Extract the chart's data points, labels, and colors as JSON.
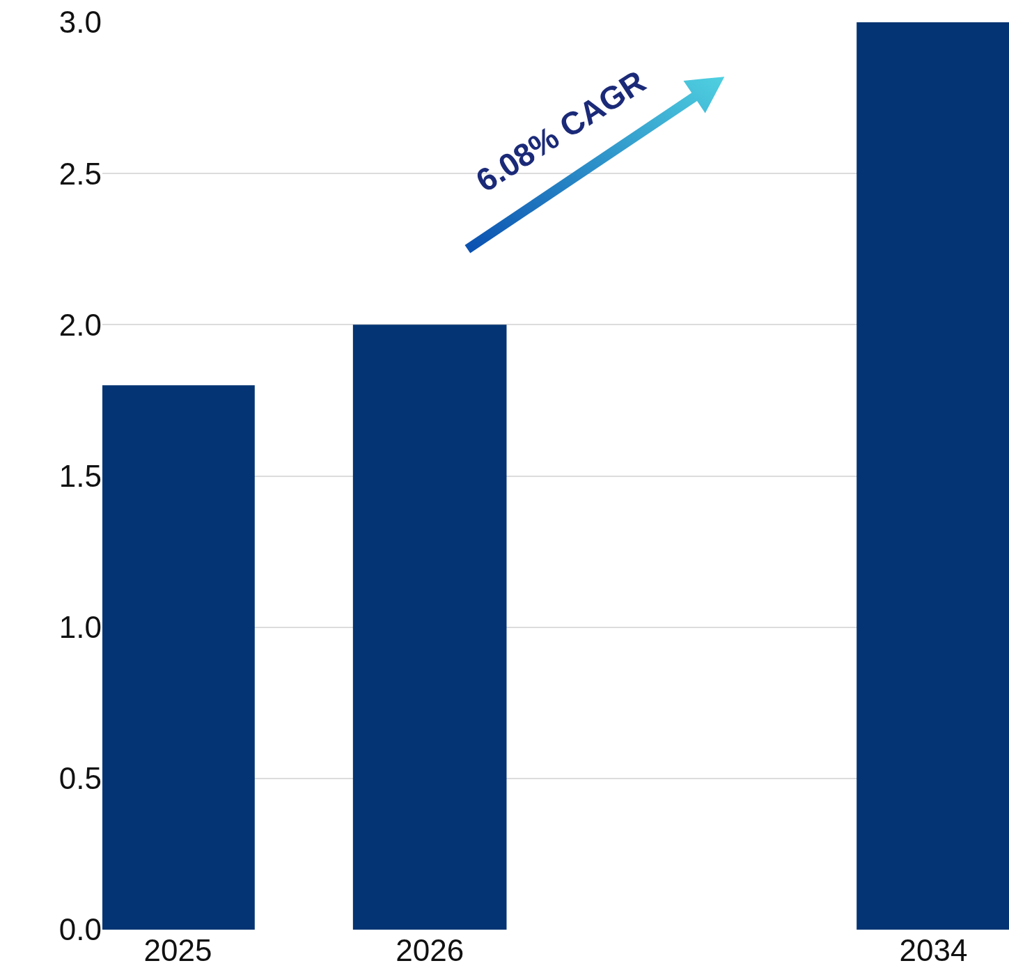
{
  "chart_data": {
    "type": "bar",
    "categories": [
      "2025",
      "2026",
      null,
      "2034"
    ],
    "values": [
      1.8,
      2.0,
      null,
      3.0
    ],
    "color": "#043473",
    "ylim": [
      0,
      3
    ],
    "yticks": [
      {
        "value": 0,
        "label": "0.0"
      },
      0.5,
      {
        "value": 1,
        "label": "1.0"
      },
      1.5,
      {
        "value": 2,
        "label": "2.0"
      },
      2.5,
      {
        "value": 3,
        "label": "3.0"
      }
    ],
    "grid": "y",
    "annotations": [
      "6.08% CAGR"
    ]
  }
}
